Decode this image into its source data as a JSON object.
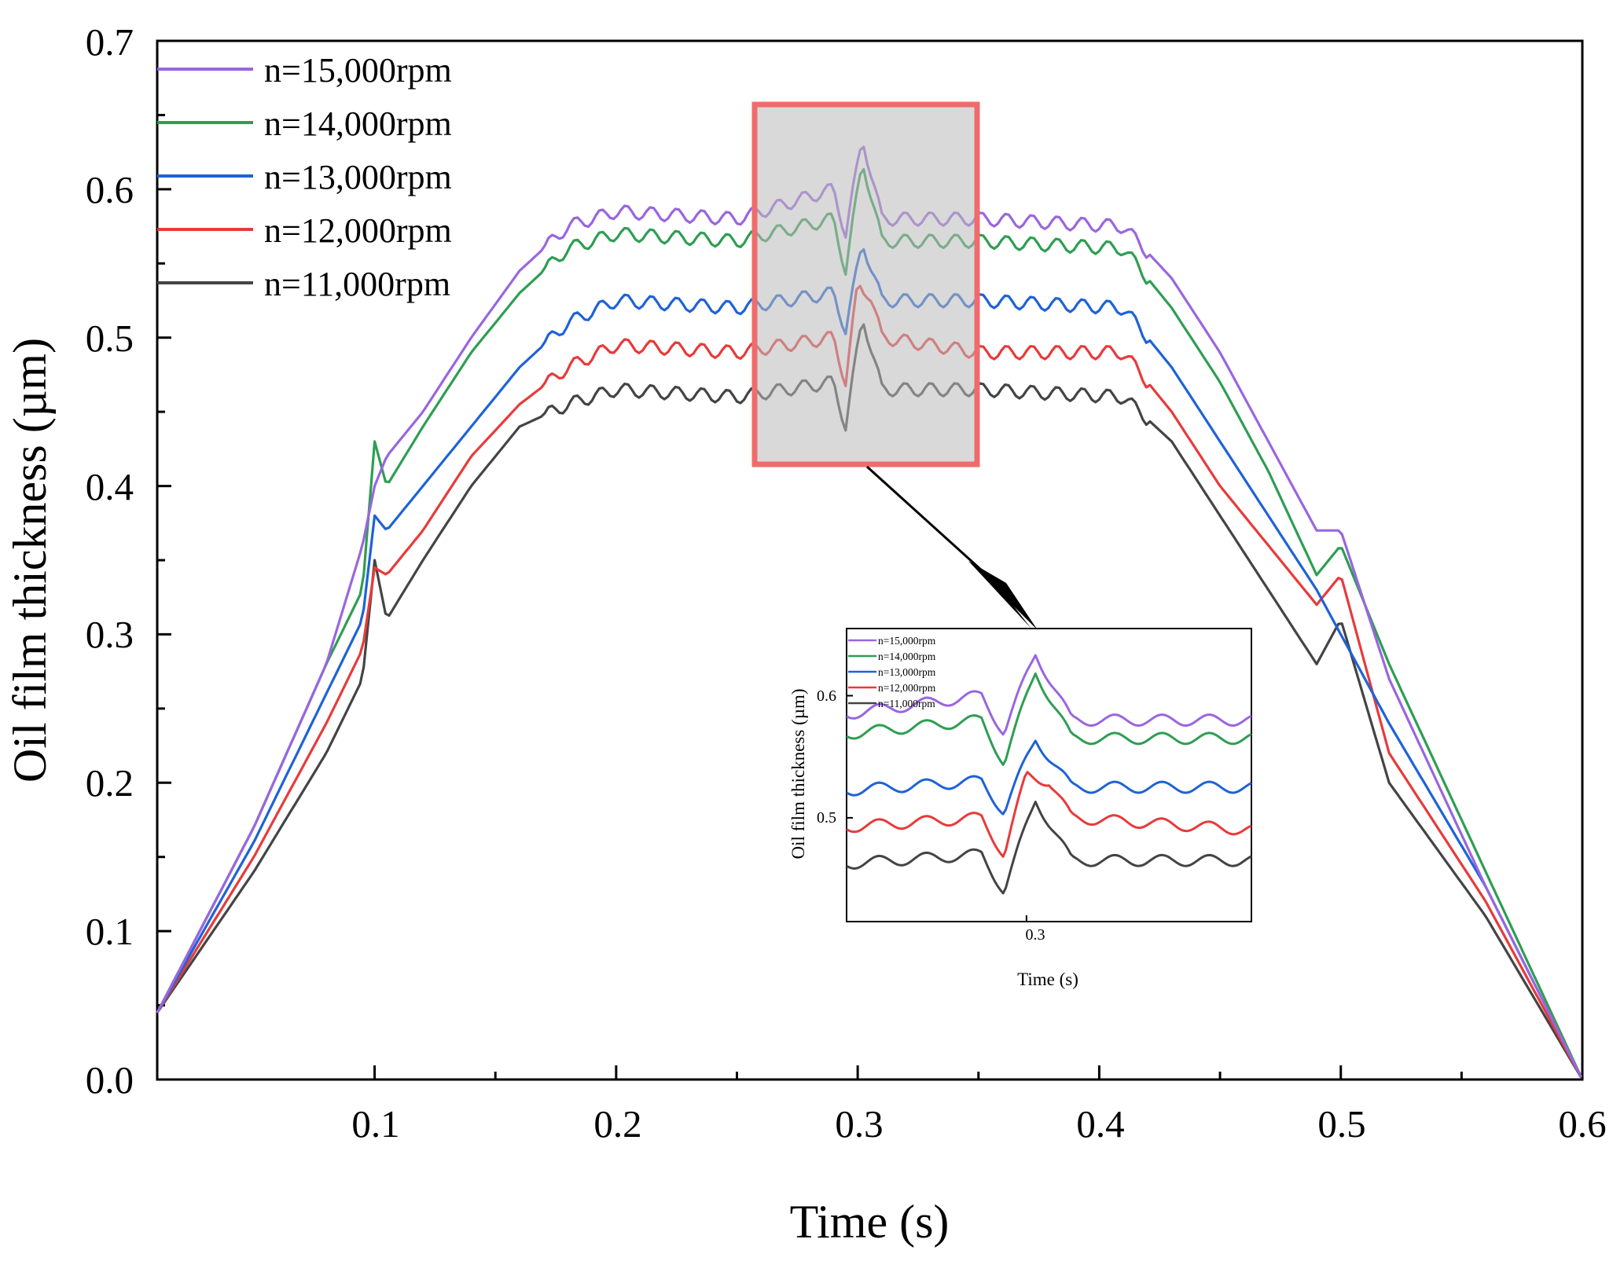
{
  "chart_data": [
    {
      "type": "line",
      "xlabel": "Time (s)",
      "ylabel": "Oil film thickness (µm)",
      "xlim": [
        0.01,
        0.6
      ],
      "ylim": [
        0.0,
        0.7
      ],
      "x_ticks": [
        "0.1",
        "0.2",
        "0.3",
        "0.4",
        "0.5",
        "0.6"
      ],
      "y_ticks": [
        "0.0",
        "0.1",
        "0.2",
        "0.3",
        "0.4",
        "0.5",
        "0.6",
        "0.7"
      ],
      "grid": false,
      "legend_position": "top-left",
      "series": [
        {
          "name": "n=15,000rpm",
          "color": "#9966e0",
          "x": [
            0.01,
            0.05,
            0.08,
            0.095,
            0.1,
            0.105,
            0.12,
            0.14,
            0.16,
            0.18,
            0.2,
            0.25,
            0.29,
            0.295,
            0.302,
            0.31,
            0.35,
            0.41,
            0.43,
            0.45,
            0.47,
            0.49,
            0.5,
            0.52,
            0.56,
            0.6
          ],
          "y": [
            0.045,
            0.17,
            0.28,
            0.36,
            0.4,
            0.42,
            0.45,
            0.5,
            0.545,
            0.575,
            0.585,
            0.58,
            0.6,
            0.57,
            0.635,
            0.58,
            0.58,
            0.575,
            0.54,
            0.49,
            0.43,
            0.37,
            0.37,
            0.27,
            0.13,
            0.0
          ]
        },
        {
          "name": "n=14,000rpm",
          "color": "#2e9e52",
          "x": [
            0.01,
            0.05,
            0.08,
            0.095,
            0.1,
            0.105,
            0.12,
            0.14,
            0.16,
            0.18,
            0.2,
            0.25,
            0.29,
            0.295,
            0.302,
            0.31,
            0.35,
            0.41,
            0.43,
            0.45,
            0.47,
            0.49,
            0.5,
            0.52,
            0.56,
            0.6
          ],
          "y": [
            0.045,
            0.17,
            0.28,
            0.33,
            0.43,
            0.4,
            0.44,
            0.49,
            0.53,
            0.56,
            0.57,
            0.565,
            0.58,
            0.545,
            0.62,
            0.565,
            0.565,
            0.56,
            0.52,
            0.47,
            0.41,
            0.34,
            0.36,
            0.28,
            0.14,
            0.0
          ]
        },
        {
          "name": "n=13,000rpm",
          "color": "#1e63d6",
          "x": [
            0.01,
            0.05,
            0.08,
            0.095,
            0.1,
            0.105,
            0.12,
            0.14,
            0.16,
            0.18,
            0.2,
            0.25,
            0.29,
            0.295,
            0.302,
            0.31,
            0.35,
            0.41,
            0.43,
            0.45,
            0.47,
            0.49,
            0.5,
            0.52,
            0.56,
            0.6
          ],
          "y": [
            0.045,
            0.16,
            0.26,
            0.31,
            0.38,
            0.37,
            0.4,
            0.44,
            0.48,
            0.51,
            0.525,
            0.52,
            0.53,
            0.505,
            0.565,
            0.525,
            0.525,
            0.52,
            0.48,
            0.43,
            0.38,
            0.33,
            0.3,
            0.24,
            0.13,
            0.0
          ]
        },
        {
          "name": "n=12,000rpm",
          "color": "#e83a3a",
          "x": [
            0.01,
            0.05,
            0.08,
            0.095,
            0.1,
            0.105,
            0.12,
            0.14,
            0.16,
            0.18,
            0.2,
            0.25,
            0.29,
            0.295,
            0.3,
            0.305,
            0.31,
            0.35,
            0.41,
            0.43,
            0.45,
            0.47,
            0.49,
            0.5,
            0.52,
            0.56,
            0.6
          ],
          "y": [
            0.045,
            0.15,
            0.24,
            0.29,
            0.345,
            0.34,
            0.37,
            0.42,
            0.455,
            0.48,
            0.495,
            0.49,
            0.5,
            0.47,
            0.535,
            0.53,
            0.5,
            0.49,
            0.49,
            0.45,
            0.4,
            0.36,
            0.32,
            0.34,
            0.22,
            0.12,
            0.0
          ]
        },
        {
          "name": "n=11,000rpm",
          "color": "#444444",
          "x": [
            0.01,
            0.05,
            0.08,
            0.095,
            0.1,
            0.105,
            0.12,
            0.14,
            0.16,
            0.18,
            0.2,
            0.25,
            0.29,
            0.295,
            0.302,
            0.31,
            0.35,
            0.41,
            0.43,
            0.45,
            0.47,
            0.49,
            0.5,
            0.52,
            0.56,
            0.6
          ],
          "y": [
            0.045,
            0.14,
            0.22,
            0.27,
            0.35,
            0.31,
            0.35,
            0.4,
            0.44,
            0.455,
            0.465,
            0.46,
            0.47,
            0.44,
            0.515,
            0.465,
            0.465,
            0.46,
            0.43,
            0.38,
            0.33,
            0.28,
            0.31,
            0.2,
            0.11,
            0.0
          ]
        }
      ]
    },
    {
      "type": "line",
      "xlabel": "Time (s)",
      "ylabel": "Oil film thickness (µm)",
      "xlim": [
        0.26,
        0.35
      ],
      "ylim": [
        0.415,
        0.655
      ],
      "x_ticks": [
        "0.3"
      ],
      "y_ticks": [
        "0.5",
        "0.6"
      ],
      "legend_position": "top-left",
      "series": [
        {
          "name": "n=15,000rpm",
          "color": "#9966e0"
        },
        {
          "name": "n=14,000rpm",
          "color": "#2e9e52"
        },
        {
          "name": "n=13,000rpm",
          "color": "#1e63d6"
        },
        {
          "name": "n=12,000rpm",
          "color": "#e83a3a"
        },
        {
          "name": "n=11,000rpm",
          "color": "#444444"
        }
      ]
    }
  ]
}
